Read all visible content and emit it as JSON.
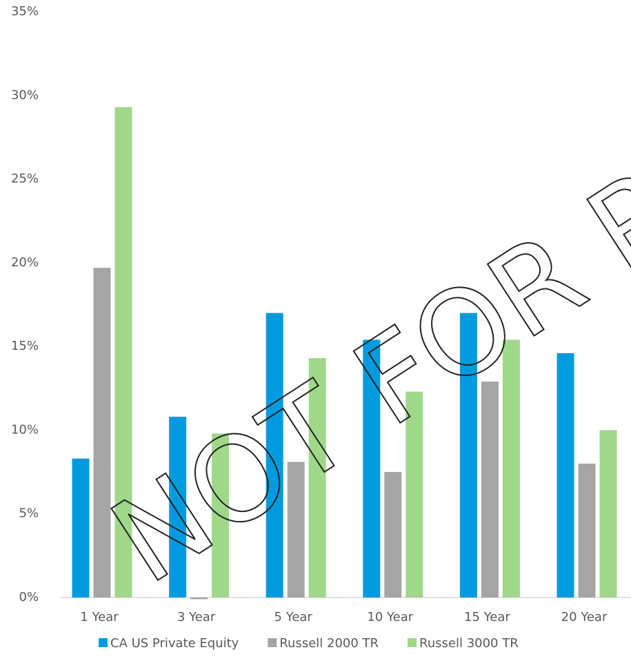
{
  "chart_data": {
    "type": "bar",
    "categories": [
      "1 Year",
      "3 Year",
      "5 Year",
      "10 Year",
      "15 Year",
      "20 Year"
    ],
    "series": [
      {
        "name": "CA US Private Equity",
        "color": "#009bde",
        "values": [
          8.3,
          10.8,
          17.0,
          15.4,
          17.0,
          14.6
        ]
      },
      {
        "name": "Russell 2000 TR",
        "color": "#a5a5a5",
        "values": [
          19.7,
          -0.1,
          8.1,
          7.5,
          12.9,
          8.0
        ]
      },
      {
        "name": "Russell 3000 TR",
        "color": "#a0d88a",
        "values": [
          29.3,
          9.8,
          14.3,
          12.3,
          15.4,
          10.0
        ]
      }
    ],
    "ylim": [
      0,
      35
    ],
    "yticks": [
      {
        "value": 0,
        "label": "0%"
      },
      {
        "value": 5,
        "label": "5%"
      },
      {
        "value": 10,
        "label": "10%"
      },
      {
        "value": 15,
        "label": "15%"
      },
      {
        "value": 20,
        "label": "20%"
      },
      {
        "value": 25,
        "label": "25%"
      },
      {
        "value": 30,
        "label": "30%"
      },
      {
        "value": 35,
        "label": "35%"
      }
    ],
    "grid": false,
    "legend": "bottom",
    "watermark": "NOT FOR RED"
  }
}
